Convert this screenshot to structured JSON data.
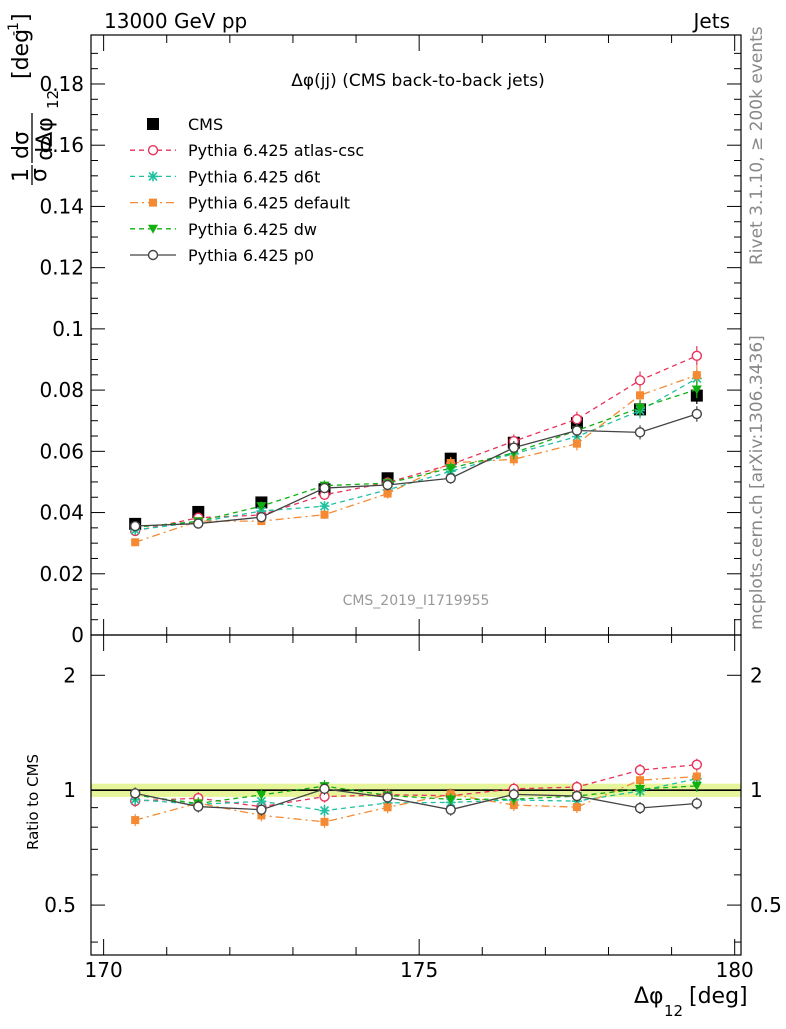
{
  "header": {
    "left": "13000 GeV pp",
    "right": "Jets"
  },
  "side": {
    "rivet": "Rivet 3.1.10, ≥ 200k events",
    "mcplots": "mcplots.cern.ch [arXiv:1306.3436]"
  },
  "chart_data": [
    {
      "type": "line",
      "title": "Δφ(jj) (CMS back-to-back jets)",
      "watermark": "CMS_2019_I1719955",
      "ylabel_num": "1",
      "ylabel_num_frac": "dσ",
      "ylabel_den": "σ",
      "ylabel_den_frac": "dΔφ",
      "ylabel_sub": "12",
      "ylabel_unit": "[deg",
      "ylabel_unit_sup": "-1",
      "ylabel_unit_close": "]",
      "xlim": [
        169.8,
        180.1
      ],
      "ylim": [
        0,
        0.196
      ],
      "y_ticks": [
        "0",
        "0.02",
        "0.04",
        "0.06",
        "0.08",
        "0.1",
        "0.12",
        "0.14",
        "0.16",
        "0.18"
      ],
      "x": [
        170.5,
        171.5,
        172.5,
        173.5,
        174.5,
        175.5,
        176.5,
        177.5,
        178.5,
        179.4
      ],
      "series": [
        {
          "name": "CMS",
          "color": "#000000",
          "marker": "square",
          "dash": "",
          "values": [
            0.0363,
            0.0402,
            0.0433,
            0.0476,
            0.0512,
            0.0576,
            0.0628,
            0.0692,
            0.0737,
            0.0782
          ]
        },
        {
          "name": "Pythia 6.425 atlas-csc",
          "color": "#e8335a",
          "marker": "open-circle",
          "dash": "5,4",
          "values": [
            0.034,
            0.0383,
            0.0392,
            0.0458,
            0.0498,
            0.0557,
            0.0633,
            0.0705,
            0.0832,
            0.0912
          ]
        },
        {
          "name": "Pythia 6.425 d6t",
          "color": "#20c0a0",
          "marker": "star",
          "dash": "5,4",
          "values": [
            0.0343,
            0.0369,
            0.0405,
            0.0421,
            0.0474,
            0.0535,
            0.0592,
            0.0648,
            0.0733,
            0.0838
          ]
        },
        {
          "name": "Pythia 6.425 default",
          "color": "#f58a33",
          "marker": "filled-square",
          "dash": "8,4,2,4",
          "values": [
            0.0303,
            0.0372,
            0.0372,
            0.0393,
            0.0462,
            0.0562,
            0.0574,
            0.0625,
            0.0783,
            0.0849
          ]
        },
        {
          "name": "Pythia 6.425 dw",
          "color": "#10b010",
          "marker": "triangle-down",
          "dash": "5,4",
          "values": [
            0.0352,
            0.0371,
            0.0421,
            0.0488,
            0.0496,
            0.0545,
            0.0595,
            0.0668,
            0.0742,
            0.0802
          ]
        },
        {
          "name": "Pythia 6.425 p0",
          "color": "#444444",
          "marker": "open-circle",
          "dash": "",
          "values": [
            0.0356,
            0.0364,
            0.0385,
            0.048,
            0.049,
            0.0512,
            0.0612,
            0.0668,
            0.0662,
            0.0722
          ]
        }
      ]
    },
    {
      "type": "line",
      "ylabel": "Ratio to CMS",
      "xlabel": "Δφ",
      "xlabel_sub": "12",
      "xlabel_unit": "[deg]",
      "xlim": [
        169.8,
        180.1
      ],
      "ylim": [
        0.37,
        2.55
      ],
      "log_y": true,
      "y_ticks": [
        {
          "value": 0.5,
          "label": "0.5"
        },
        {
          "value": 1,
          "label": "1"
        },
        {
          "value": 2,
          "label": "2"
        }
      ],
      "x_ticks": [
        {
          "value": 170,
          "label": "170"
        },
        {
          "value": 175,
          "label": "175"
        },
        {
          "value": 180,
          "label": "180"
        }
      ],
      "x": [
        170.5,
        171.5,
        172.5,
        173.5,
        174.5,
        175.5,
        176.5,
        177.5,
        178.5,
        179.4
      ],
      "series": [
        {
          "name": "Pythia 6.425 atlas-csc",
          "color": "#e8335a",
          "marker": "open-circle",
          "dash": "5,4",
          "values": [
            0.937,
            0.953,
            0.905,
            0.962,
            0.973,
            0.967,
            1.008,
            1.019,
            1.129,
            1.166
          ]
        },
        {
          "name": "Pythia 6.425 d6t",
          "color": "#20c0a0",
          "marker": "star",
          "dash": "5,4",
          "values": [
            0.945,
            0.918,
            0.935,
            0.884,
            0.926,
            0.929,
            0.943,
            0.936,
            0.995,
            1.072
          ]
        },
        {
          "name": "Pythia 6.425 default",
          "color": "#f58a33",
          "marker": "filled-square",
          "dash": "8,4,2,4",
          "values": [
            0.835,
            0.925,
            0.859,
            0.826,
            0.902,
            0.976,
            0.914,
            0.903,
            1.062,
            1.086
          ]
        },
        {
          "name": "Pythia 6.425 dw",
          "color": "#10b010",
          "marker": "triangle-down",
          "dash": "5,4",
          "values": [
            0.97,
            0.923,
            0.972,
            1.025,
            0.969,
            0.946,
            0.947,
            0.965,
            1.007,
            1.026
          ]
        },
        {
          "name": "Pythia 6.425 p0",
          "color": "#444444",
          "marker": "open-circle",
          "dash": "",
          "values": [
            0.981,
            0.906,
            0.889,
            1.008,
            0.957,
            0.889,
            0.975,
            0.965,
            0.898,
            0.923
          ]
        }
      ]
    }
  ]
}
